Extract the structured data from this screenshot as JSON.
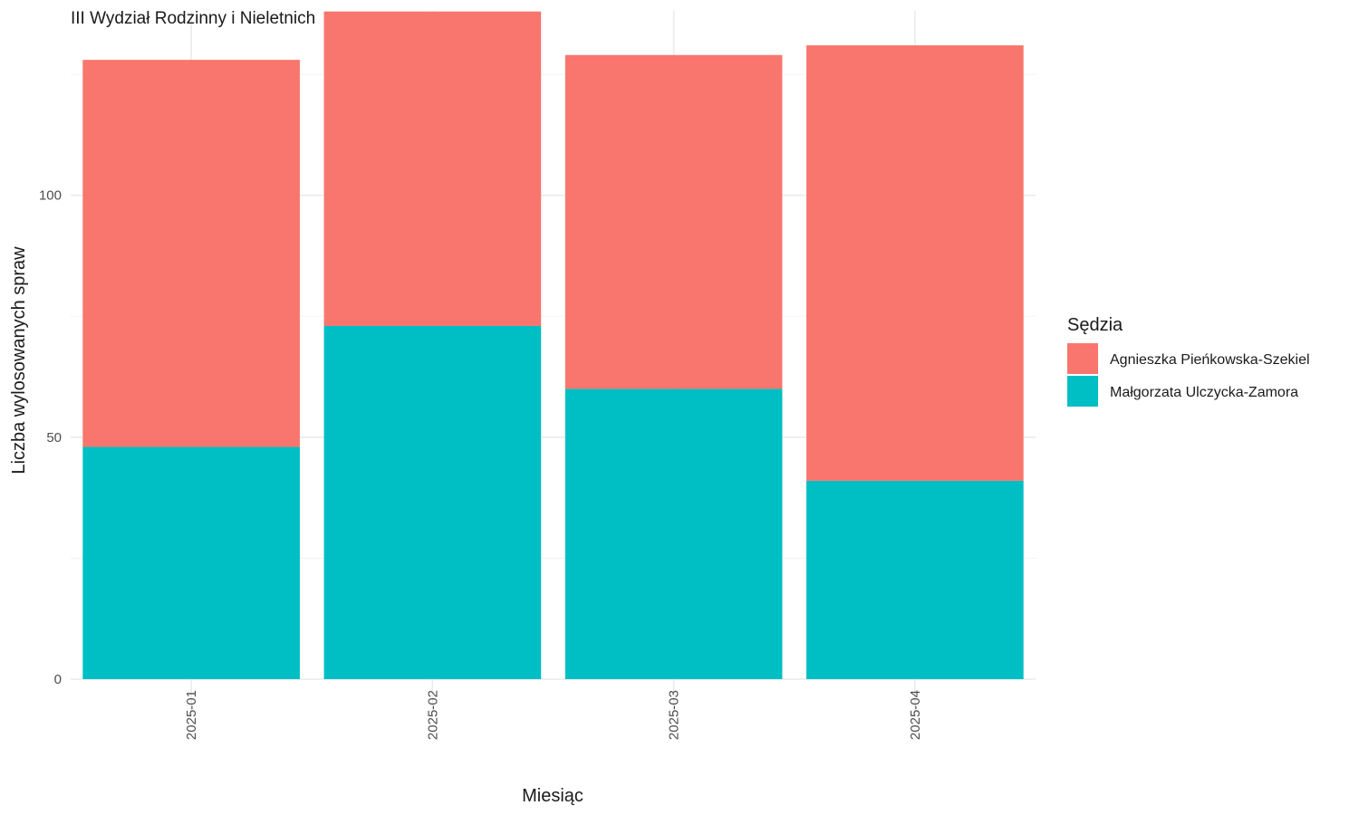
{
  "chart_data": {
    "type": "bar",
    "stacked": true,
    "title": "III Wydział Rodzinny i Nieletnich",
    "xlabel": "Miesiąc",
    "ylabel": "Liczba wylosowanych spraw",
    "categories": [
      "2025-01",
      "2025-02",
      "2025-03",
      "2025-04"
    ],
    "y_ticks": [
      0,
      50,
      100
    ],
    "ylim": [
      0,
      140
    ],
    "grid": true,
    "legend": {
      "title": "Sędzia",
      "position": "right"
    },
    "series": [
      {
        "name": "Małgorzata Ulczycka-Zamora",
        "color": "#00BFC4",
        "values": [
          48,
          73,
          60,
          41
        ]
      },
      {
        "name": "Agnieszka Pieńkowska-Szekiel",
        "color": "#F8766D",
        "values": [
          80,
          65,
          69,
          90
        ]
      }
    ],
    "legend_order": [
      "Agnieszka Pieńkowska-Szekiel",
      "Małgorzata Ulczycka-Zamora"
    ]
  }
}
